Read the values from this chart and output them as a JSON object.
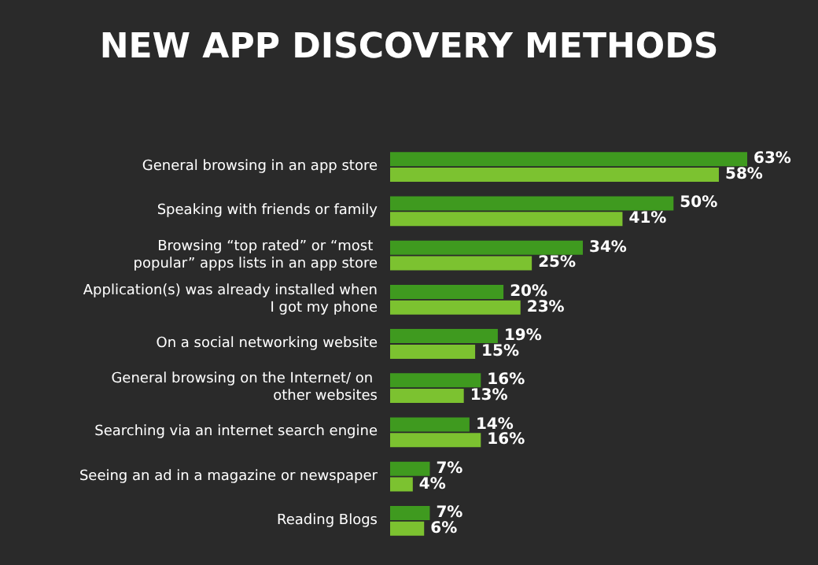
{
  "chart_data": {
    "type": "bar",
    "orientation": "horizontal",
    "title": "NEW APP DISCOVERY METHODS",
    "categories": [
      "General browsing in an app store",
      "Speaking with friends or family",
      "Browsing “top rated” or “most popular” apps lists in an app store",
      "Application(s) was already installed when I got my phone",
      "On a social networking website",
      "General browsing on the Internet/ on other websites",
      "Searching via an internet search engine",
      "Seeing an ad in a magazine or newspaper",
      "Reading Blogs"
    ],
    "series": [
      {
        "color": "#3f9a1f",
        "values": [
          63,
          50,
          34,
          20,
          19,
          16,
          14,
          7,
          7
        ],
        "value_labels": [
          "63%",
          "50%",
          "34%",
          "20%",
          "19%",
          "16%",
          "14%",
          "7%",
          "7%"
        ]
      },
      {
        "color": "#7cc230",
        "values": [
          58,
          41,
          25,
          23,
          15,
          13,
          16,
          4,
          6
        ],
        "value_labels": [
          "58%",
          "41%",
          "25%",
          "23%",
          "15%",
          "13%",
          "16%",
          "4%",
          "6%"
        ]
      }
    ]
  }
}
